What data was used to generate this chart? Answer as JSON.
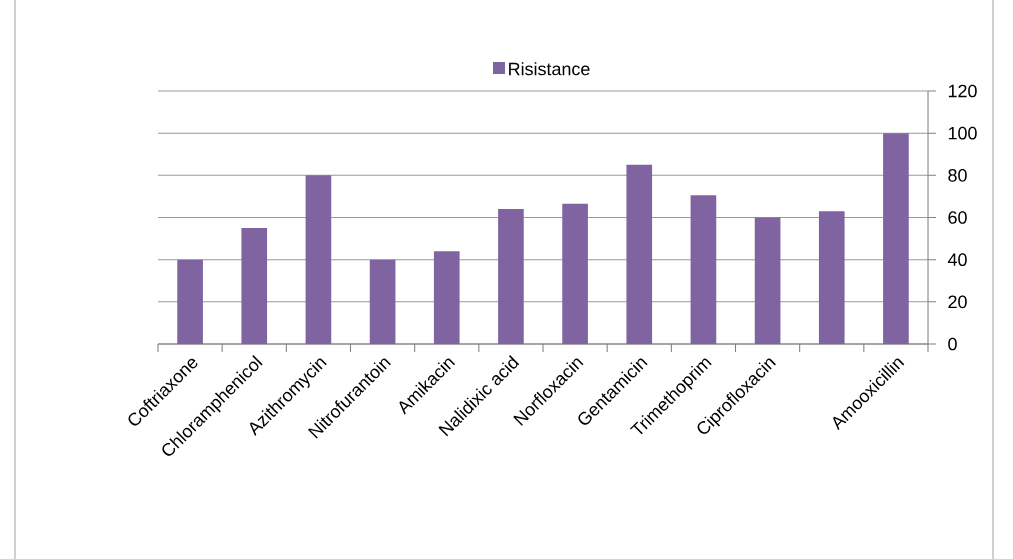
{
  "chart_data": {
    "type": "bar",
    "categories": [
      "Coftriaxone",
      "Chloramphenicol",
      "Azithromycin",
      "Nitrofurantoin",
      "Amikacin",
      "Nalidixic acid",
      "Norfloxacin",
      "Gentamicin",
      "Trimethoprim",
      "Ciprofloxacin",
      null,
      "Amooxicillin"
    ],
    "series": [
      {
        "name": "Risistance",
        "color": "#8064a2",
        "values": [
          40,
          55,
          80,
          40,
          44,
          64,
          66.5,
          85,
          70.5,
          60,
          63,
          100
        ]
      }
    ],
    "ylim": [
      0,
      120
    ],
    "yticks": [
      0,
      20,
      40,
      60,
      80,
      100,
      120
    ],
    "grid": "y",
    "legend": "top"
  }
}
